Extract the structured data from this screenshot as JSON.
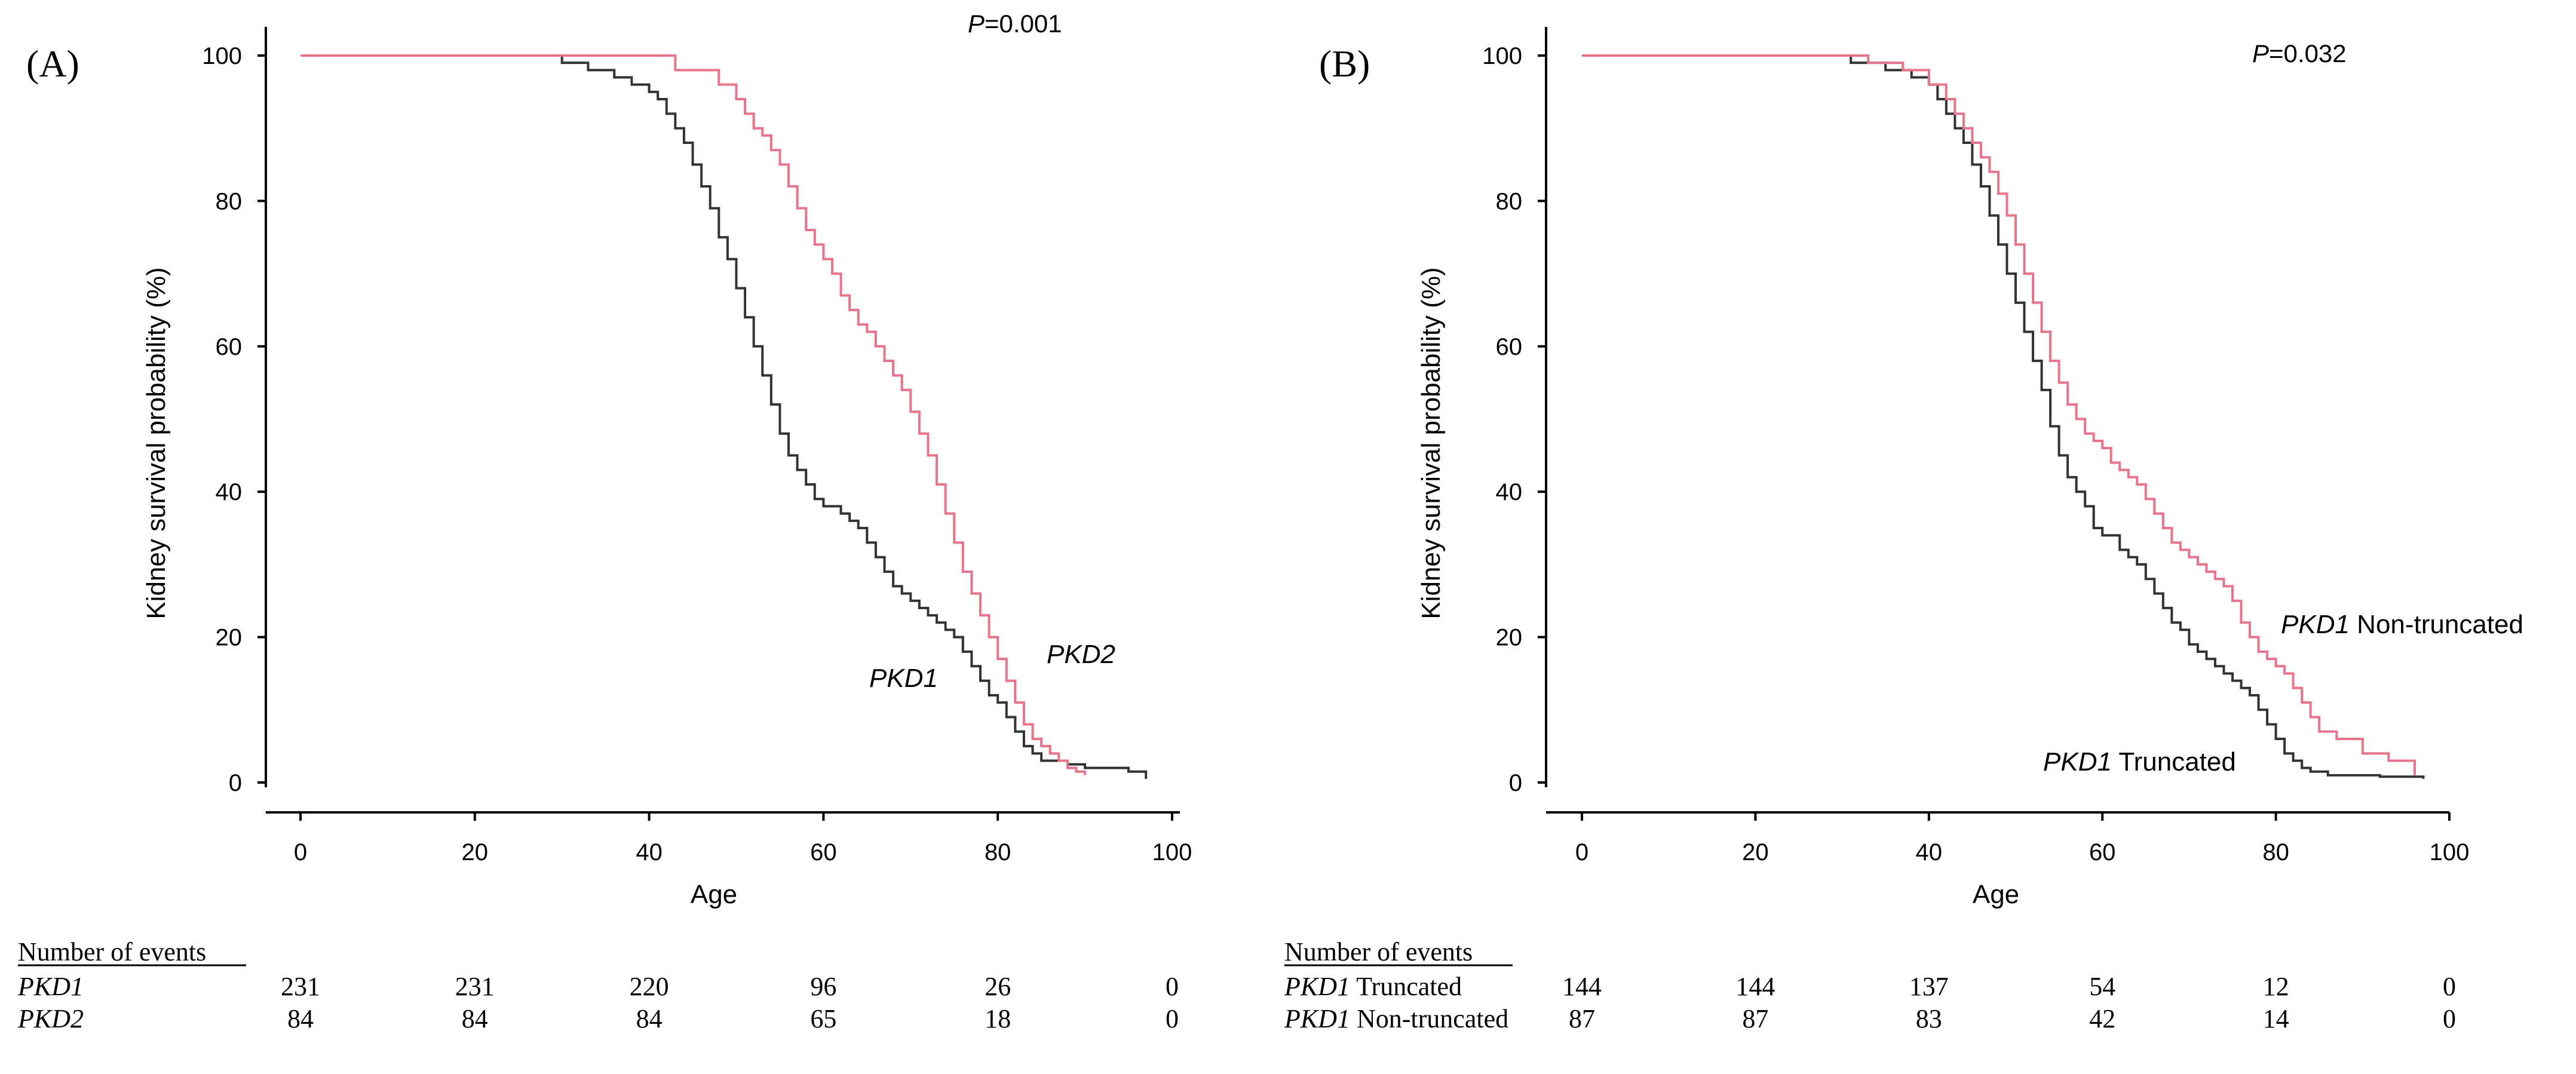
{
  "chart_data": [
    {
      "type": "line",
      "panel_label": "(A)",
      "p_value": {
        "prefix": "P",
        "text": "=0.001"
      },
      "xlabel": "Age",
      "ylabel": "Kidney survival probability (%)",
      "xlim": [
        0,
        100
      ],
      "ylim": [
        0,
        100
      ],
      "x_ticks": [
        "0",
        "20",
        "40",
        "60",
        "80",
        "100"
      ],
      "y_ticks": [
        "0",
        "20",
        "40",
        "60",
        "80",
        "100"
      ],
      "series": [
        {
          "name": "PKD1",
          "label_italic": "PKD1",
          "label_rest": "",
          "color": "#333333",
          "x": [
            0,
            28,
            30,
            33,
            36,
            38,
            40,
            41,
            42,
            43,
            44,
            45,
            46,
            47,
            48,
            49,
            50,
            51,
            52,
            53,
            54,
            55,
            56,
            57,
            58,
            59,
            60,
            62,
            63,
            64,
            65,
            66,
            67,
            68,
            69,
            70,
            71,
            72,
            73,
            74,
            75,
            76,
            77,
            78,
            79,
            80,
            81,
            82,
            83,
            84,
            85,
            86,
            88,
            90,
            92,
            95,
            97
          ],
          "y": [
            100,
            100,
            99,
            98,
            97,
            96,
            95,
            94,
            92,
            90,
            88,
            85,
            82,
            79,
            75,
            72,
            68,
            64,
            60,
            56,
            52,
            48,
            45,
            43,
            41,
            39,
            38,
            37,
            36,
            35,
            33,
            31,
            29,
            27,
            26,
            25,
            24,
            23,
            22,
            21,
            20,
            18,
            16,
            14,
            12,
            11,
            9,
            7,
            5,
            4,
            3,
            3,
            2.5,
            2,
            2,
            1.5,
            0.5
          ]
        },
        {
          "name": "PKD2",
          "label_italic": "PKD2",
          "label_rest": "",
          "color": "#e8738a",
          "x": [
            0,
            42,
            43,
            45,
            48,
            50,
            51,
            52,
            53,
            54,
            55,
            56,
            57,
            58,
            59,
            60,
            61,
            62,
            63,
            64,
            65,
            66,
            67,
            68,
            69,
            70,
            71,
            72,
            73,
            74,
            75,
            76,
            77,
            78,
            79,
            80,
            81,
            82,
            83,
            84,
            85,
            86,
            87,
            88,
            89,
            90
          ],
          "y": [
            100,
            100,
            98,
            98,
            96,
            94,
            92,
            90,
            89,
            87,
            85,
            82,
            79,
            76,
            74,
            72,
            70,
            67,
            65,
            63,
            62,
            60,
            58,
            56,
            54,
            51,
            48,
            45,
            41,
            37,
            33,
            29,
            26,
            23,
            20,
            17,
            14,
            11,
            8,
            6,
            5,
            4,
            3,
            2,
            1.5,
            1
          ]
        }
      ],
      "risk_table": {
        "header": "Number of events",
        "rows": [
          {
            "label_italic": "PKD1",
            "label_rest": "",
            "values": [
              "231",
              "231",
              "220",
              "96",
              "26",
              "0"
            ]
          },
          {
            "label_italic": "PKD2",
            "label_rest": "",
            "values": [
              "84",
              "84",
              "84",
              "65",
              "18",
              "0"
            ]
          }
        ]
      }
    },
    {
      "type": "line",
      "panel_label": "(B)",
      "p_value": {
        "prefix": "P",
        "text": "=0.032"
      },
      "xlabel": "Age",
      "ylabel": "Kidney survival probability (%)",
      "xlim": [
        0,
        100
      ],
      "ylim": [
        0,
        100
      ],
      "x_ticks": [
        "0",
        "20",
        "40",
        "60",
        "80",
        "100"
      ],
      "y_ticks": [
        "0",
        "20",
        "40",
        "60",
        "80",
        "100"
      ],
      "series": [
        {
          "name": "PKD1 Truncated",
          "label_italic": "PKD1",
          "label_rest": " Truncated",
          "color": "#333333",
          "x": [
            0,
            29,
            31,
            35,
            38,
            40,
            41,
            42,
            43,
            44,
            45,
            46,
            47,
            48,
            49,
            50,
            51,
            52,
            53,
            54,
            55,
            56,
            57,
            58,
            59,
            60,
            62,
            63,
            64,
            65,
            66,
            67,
            68,
            69,
            70,
            71,
            72,
            73,
            74,
            75,
            76,
            77,
            78,
            79,
            80,
            81,
            82,
            83,
            84,
            86,
            88,
            92,
            97
          ],
          "y": [
            100,
            100,
            99,
            98,
            97,
            96,
            94,
            92,
            90,
            88,
            85,
            82,
            78,
            74,
            70,
            66,
            62,
            58,
            54,
            49,
            45,
            42,
            40,
            38,
            35,
            34,
            32,
            31,
            30,
            28,
            26,
            24,
            22,
            21,
            19,
            18,
            17,
            16,
            15,
            14,
            13,
            12,
            10,
            8,
            6,
            4,
            3,
            2,
            1.5,
            1,
            1,
            0.8,
            0.5
          ]
        },
        {
          "name": "PKD1 Non-truncated",
          "label_italic": "PKD1",
          "label_rest": " Non-truncated",
          "color": "#e8738a",
          "x": [
            0,
            30,
            33,
            37,
            40,
            42,
            43,
            44,
            45,
            46,
            47,
            48,
            49,
            50,
            51,
            52,
            53,
            54,
            55,
            56,
            57,
            58,
            59,
            60,
            61,
            62,
            63,
            64,
            65,
            66,
            67,
            68,
            69,
            70,
            71,
            72,
            73,
            74,
            75,
            76,
            77,
            78,
            79,
            80,
            81,
            82,
            83,
            84,
            85,
            87,
            90,
            93,
            96
          ],
          "y": [
            100,
            100,
            99,
            98,
            96,
            94,
            92,
            90,
            88,
            86,
            84,
            81,
            78,
            74,
            70,
            66,
            62,
            58,
            55,
            52,
            50,
            48,
            47,
            46,
            44,
            43,
            42,
            41,
            39,
            37,
            35,
            33,
            32,
            31,
            30,
            29,
            28,
            27,
            25,
            22,
            20,
            18,
            17,
            16,
            15,
            13,
            11,
            9,
            7,
            6,
            4,
            3,
            1
          ]
        }
      ],
      "risk_table": {
        "header": "Number of events",
        "rows": [
          {
            "label_italic": "PKD1",
            "label_rest": " Truncated",
            "values": [
              "144",
              "144",
              "137",
              "54",
              "12",
              "0"
            ]
          },
          {
            "label_italic": "PKD1",
            "label_rest": " Non-truncated",
            "values": [
              "87",
              "87",
              "83",
              "42",
              "14",
              "0"
            ]
          }
        ]
      }
    }
  ]
}
